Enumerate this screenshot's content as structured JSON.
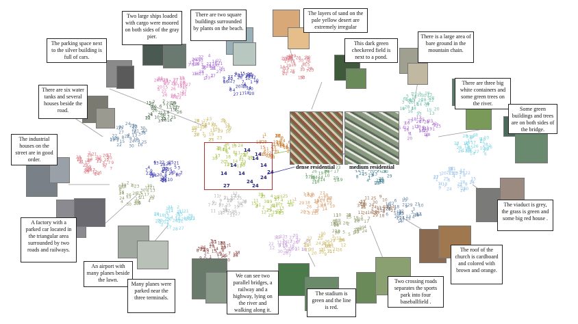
{
  "zoom_labels": [
    "dense residential",
    "medium residential"
  ],
  "captions": [
    "The layers of sand on the pale yellow desert are extremely irregular",
    "Two large ships loaded with cargo were moored on both sides of the gray pier.",
    "There are two square buildings surrounded by plants on the beach.",
    "The parking space next to the silver building is full of cars.",
    "This dark green checkered field is next to a pond.",
    "There is a large area of bare ground in the mountain chain.",
    "There are six water tanks and several houses beside the road.",
    "There are three big white containers and some green trees on the river.",
    "Some green buildings and trees are on both sides of the bridge.",
    "The industrial houses on the street are in good order.",
    "The viaduct is grey, the grass is green and some big red house .",
    "A factory with a parked car located in the triangular area surrounded by two roads and railways.",
    "The roof of the church is cardboard and colored with brown and orange.",
    "An airport with many planes beside the lawn.",
    "Many planes were parked near the three terminals.",
    "We can see two parallel bridges, a railway and a highway, lying on the river and walking along it.",
    "The stadium is green and the line is red.",
    "Two crossing roads separates the sports park into four baseballfield ."
  ],
  "highlight_numbers": [
    "14",
    "14",
    "14",
    "14",
    "14",
    "14",
    "27",
    "24",
    "24",
    "24",
    "24",
    "14"
  ],
  "cluster_colors": [
    "#d86f7a",
    "#8e9b6a",
    "#5f7fa0",
    "#c9b560",
    "#2a2aa8",
    "#a4c24b",
    "#7ad3e3",
    "#a96bd0",
    "#d8a070",
    "#8a3d3d",
    "#6fbfa8",
    "#c77a30",
    "#4c6b4c",
    "#b2b2b2",
    "#e07ab8",
    "#5a9a5a",
    "#96c0e8",
    "#c6a0d8",
    "#3e7f8f",
    "#9c7050"
  ]
}
